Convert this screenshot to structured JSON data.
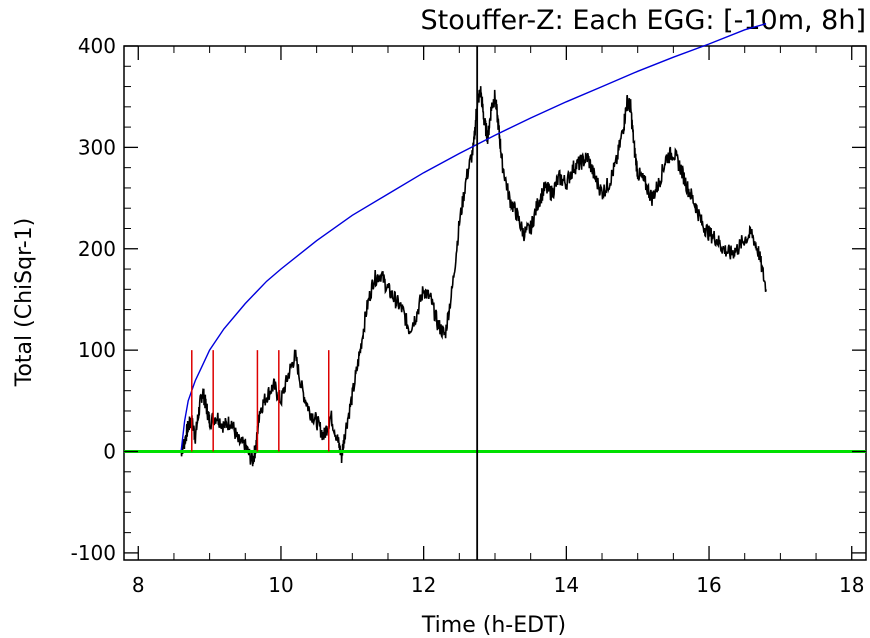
{
  "chart_data": {
    "type": "line",
    "title": "Stouffer-Z: Each EGG: [-10m, 8h]",
    "xlabel": "Time (h-EDT)",
    "ylabel": "Total (ChiSqr-1)",
    "xlim": [
      7.8,
      18.2
    ],
    "ylim": [
      -107,
      400
    ],
    "xticks": [
      8,
      10,
      12,
      14,
      16,
      18
    ],
    "yticks": [
      -100,
      0,
      100,
      200,
      300,
      400
    ],
    "xtick_labels": [
      "8",
      "10",
      "12",
      "14",
      "16",
      "18"
    ],
    "ytick_labels": [
      "-100",
      "0",
      "100",
      "200",
      "300",
      "400"
    ],
    "grid": false,
    "legend": "none",
    "colors": {
      "cumulative": "#000000",
      "envelope": "#0000dd",
      "baseline": "#00e000",
      "events": "#dd0000",
      "marker": "#000000"
    },
    "series": [
      {
        "role": "cumulative",
        "x": [
          8.6,
          8.65,
          8.7,
          8.75,
          8.8,
          8.85,
          8.9,
          8.95,
          9.0,
          9.1,
          9.2,
          9.3,
          9.4,
          9.5,
          9.6,
          9.65,
          9.7,
          9.8,
          9.9,
          10.0,
          10.1,
          10.2,
          10.3,
          10.4,
          10.5,
          10.6,
          10.7,
          10.8,
          10.85,
          10.9,
          11.0,
          11.1,
          11.2,
          11.3,
          11.4,
          11.5,
          11.6,
          11.7,
          11.8,
          11.9,
          12.0,
          12.1,
          12.2,
          12.3,
          12.4,
          12.5,
          12.6,
          12.7,
          12.75,
          12.8,
          12.85,
          12.9,
          12.95,
          13.0,
          13.05,
          13.1,
          13.2,
          13.3,
          13.4,
          13.5,
          13.6,
          13.7,
          13.8,
          13.9,
          14.0,
          14.1,
          14.2,
          14.3,
          14.4,
          14.5,
          14.6,
          14.7,
          14.8,
          14.85,
          14.9,
          14.95,
          15.0,
          15.1,
          15.2,
          15.3,
          15.4,
          15.5,
          15.6,
          15.7,
          15.8,
          15.9,
          16.0,
          16.1,
          16.2,
          16.3,
          16.4,
          16.5,
          16.6,
          16.7,
          16.8
        ],
        "y": [
          0,
          10,
          25,
          30,
          15,
          40,
          60,
          45,
          30,
          35,
          25,
          30,
          10,
          5,
          -10,
          5,
          40,
          55,
          65,
          50,
          75,
          95,
          60,
          40,
          30,
          15,
          35,
          10,
          -5,
          20,
          55,
          95,
          140,
          170,
          175,
          160,
          150,
          140,
          120,
          135,
          160,
          150,
          125,
          115,
          160,
          225,
          270,
          300,
          345,
          355,
          325,
          310,
          340,
          350,
          320,
          285,
          250,
          235,
          215,
          220,
          245,
          260,
          255,
          270,
          265,
          280,
          285,
          290,
          270,
          255,
          265,
          285,
          320,
          345,
          340,
          300,
          275,
          265,
          250,
          265,
          290,
          295,
          280,
          260,
          245,
          225,
          215,
          210,
          200,
          195,
          200,
          210,
          215,
          195,
          160
        ]
      },
      {
        "role": "envelope",
        "x": [
          8.6,
          8.65,
          8.7,
          8.8,
          8.9,
          9.0,
          9.2,
          9.5,
          9.8,
          10.0,
          10.5,
          11.0,
          11.5,
          12.0,
          12.5,
          13.0,
          13.5,
          14.0,
          14.5,
          15.0,
          15.5,
          16.0,
          16.5,
          16.8
        ],
        "y": [
          0,
          30,
          50,
          70,
          85,
          100,
          121,
          146,
          168,
          180,
          208,
          233,
          254,
          275,
          294,
          312,
          329,
          345,
          360,
          375,
          389,
          402,
          416,
          422
        ]
      },
      {
        "role": "baseline",
        "x": [
          7.8,
          18.2
        ],
        "y": [
          0,
          0
        ]
      }
    ],
    "event_markers": {
      "x": [
        8.75,
        9.05,
        9.67,
        9.97,
        10.67
      ],
      "y_from": 0,
      "y_to": 100
    },
    "vertical_marker": {
      "x": 12.75
    }
  }
}
